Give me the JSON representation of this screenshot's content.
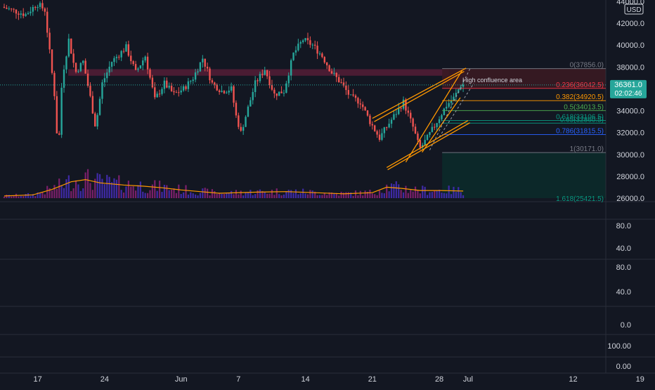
{
  "chart_data": {
    "type": "candlestick",
    "currency": "USD",
    "ylim": [
      26000,
      44000
    ],
    "y_ticks": [
      "44000.0",
      "42000.0",
      "40000.0",
      "38000.0",
      "36000.0",
      "34000.0",
      "32000.0",
      "30000.0",
      "28000.0",
      "26000.0"
    ],
    "x_ticks": [
      {
        "label": "17",
        "day": 17
      },
      {
        "label": "24",
        "day": 24
      },
      {
        "label": "Jun",
        "day": 32
      },
      {
        "label": "7",
        "day": 38
      },
      {
        "label": "14",
        "day": 45
      },
      {
        "label": "21",
        "day": 52
      },
      {
        "label": "28",
        "day": 59
      },
      {
        "label": "Jul",
        "day": 62
      },
      {
        "label": "12",
        "day": 73
      },
      {
        "label": "19",
        "day": 80
      }
    ],
    "x_domain": [
      13.5,
      82
    ],
    "last_price": "36361.0",
    "countdown": "02:02:46",
    "price_path": [
      [
        13.5,
        43500
      ],
      [
        16.0,
        42800
      ],
      [
        17.2,
        43800
      ],
      [
        18.0,
        43200
      ],
      [
        19.0,
        35500
      ],
      [
        19.4,
        30000
      ],
      [
        19.8,
        37000
      ],
      [
        20.5,
        40500
      ],
      [
        21.2,
        37500
      ],
      [
        22.0,
        38500
      ],
      [
        22.8,
        35000
      ],
      [
        23.3,
        32500
      ],
      [
        24.0,
        36500
      ],
      [
        25.0,
        38500
      ],
      [
        26.5,
        39800
      ],
      [
        27.5,
        37500
      ],
      [
        28.5,
        39000
      ],
      [
        29.5,
        35000
      ],
      [
        30.5,
        36500
      ],
      [
        31.5,
        35500
      ],
      [
        32.5,
        36000
      ],
      [
        33.5,
        37000
      ],
      [
        34.5,
        38800
      ],
      [
        35.5,
        36500
      ],
      [
        36.5,
        35800
      ],
      [
        37.5,
        36000
      ],
      [
        38.0,
        33500
      ],
      [
        38.5,
        32000
      ],
      [
        39.0,
        33500
      ],
      [
        40.0,
        36500
      ],
      [
        41.0,
        37800
      ],
      [
        42.0,
        35500
      ],
      [
        43.0,
        35800
      ],
      [
        44.0,
        39200
      ],
      [
        45.0,
        40500
      ],
      [
        46.0,
        40000
      ],
      [
        47.0,
        39000
      ],
      [
        48.0,
        37500
      ],
      [
        49.0,
        36500
      ],
      [
        50.0,
        35200
      ],
      [
        51.0,
        34800
      ],
      [
        52.0,
        33000
      ],
      [
        53.0,
        31500
      ],
      [
        53.5,
        32200
      ],
      [
        54.5,
        33500
      ],
      [
        55.5,
        34800
      ],
      [
        56.5,
        32500
      ],
      [
        57.2,
        30500
      ],
      [
        58.0,
        31500
      ],
      [
        59.0,
        33000
      ],
      [
        60.0,
        34500
      ],
      [
        60.8,
        35200
      ],
      [
        61.5,
        36361
      ]
    ],
    "volume_avg": [
      [
        13.5,
        26200
      ],
      [
        16.5,
        26300
      ],
      [
        18.5,
        26800
      ],
      [
        20.5,
        27500
      ],
      [
        22.0,
        27700
      ],
      [
        23.5,
        27400
      ],
      [
        26.0,
        27200
      ],
      [
        28.0,
        27100
      ],
      [
        30.0,
        26950
      ],
      [
        32.0,
        26750
      ],
      [
        34.0,
        26600
      ],
      [
        36.0,
        26450
      ],
      [
        40.0,
        26550
      ],
      [
        43.0,
        26600
      ],
      [
        46.0,
        26500
      ],
      [
        49.0,
        26400
      ],
      [
        52.0,
        26500
      ],
      [
        53.5,
        27000
      ],
      [
        55.0,
        26900
      ],
      [
        57.0,
        26700
      ],
      [
        59.0,
        26700
      ],
      [
        61.5,
        26650
      ]
    ],
    "fib_levels": [
      {
        "label": "0(37856.0)",
        "value": 37856,
        "color": "#787b86"
      },
      {
        "label": "0.236(36042.5)",
        "value": 36042.5,
        "color": "#f23645"
      },
      {
        "label": "0.382(34920.5)",
        "value": 34920.5,
        "color": "#ff9800"
      },
      {
        "label": "0.5(34013.5)",
        "value": 34013.5,
        "color": "#4caf50"
      },
      {
        "label": "0.618(33106.5)",
        "value": 33106.5,
        "color": "#089981"
      },
      {
        "label": "0.65(32860.5)",
        "value": 32860.5,
        "color": "#089981"
      },
      {
        "label": "0.786(31815.5)",
        "value": 31815.5,
        "color": "#2962ff"
      },
      {
        "label": "1(30171.0)",
        "value": 30171,
        "color": "#787b86"
      },
      {
        "label": "1.618(25421.5)",
        "value": 25421.5,
        "color": "#089981"
      }
    ],
    "annotation": "High confluence area",
    "lower_panes": [
      {
        "labels": [
          "80.0",
          "40.0"
        ]
      },
      {
        "labels": [
          "80.0",
          "40.0"
        ]
      },
      {
        "labels": [
          "0.0"
        ]
      },
      {
        "labels": [
          "100.00",
          "0.00"
        ]
      }
    ]
  },
  "colors": {
    "background": "#131722",
    "up": "#26a69a",
    "down": "#ef5350",
    "volume_up": "#3f2aa6",
    "volume_down": "#7a1f6a",
    "volume_ma": "#ff9800",
    "channel": "#ff9800",
    "resistance_band": "#5d1f3a",
    "fib_zone_top": "#3a1a22",
    "fib_zone_bottom": "#0c2a2a",
    "price_label": "#26a69a",
    "axis_text": "#d1d4dc",
    "pane_border": "#2a2e39"
  }
}
